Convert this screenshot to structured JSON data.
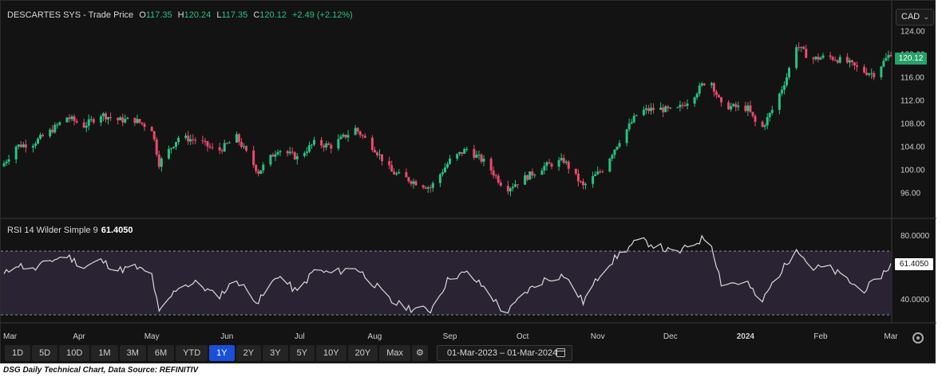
{
  "header": {
    "title": "DESCARTES SYS - Trade Price",
    "o_label": "O",
    "o_value": "117.35",
    "h_label": "H",
    "h_value": "120.24",
    "l_label": "L",
    "l_value": "117.35",
    "c_label": "C",
    "c_value": "120.12",
    "change": "+2.49 (+2.12%)"
  },
  "currency": "CAD",
  "price_badge": "120.12",
  "rsi_badge": "61.4050",
  "rsi_header": {
    "label": "RSI 14 Wilder Simple 9",
    "value": "61.4050"
  },
  "toolbar": {
    "ranges": [
      "1D",
      "5D",
      "10D",
      "1M",
      "3M",
      "6M",
      "YTD",
      "1Y",
      "2Y",
      "3Y",
      "5Y",
      "10Y",
      "20Y",
      "Max"
    ],
    "active": "1Y"
  },
  "date_range": "01-Mar-2023  –  01-Mar-2024",
  "caption": "DSG Daily Technical Chart, Data Source: REFINITIV",
  "colors": {
    "up": "#26c281",
    "down": "#e84a6b",
    "rsi_line": "#d9d9d9",
    "rsi_band": "#2a2333",
    "background": "#131313"
  },
  "icons": {
    "calendar": "calendar-icon",
    "settings": "settings-icon",
    "chevron": "chevron-down-icon"
  },
  "chart_data": [
    {
      "type": "candlestick",
      "title": "DESCARTES SYS - Trade Price",
      "y_ticks": [
        "124.00",
        "120.00",
        "116.00",
        "112.00",
        "108.00",
        "104.00",
        "100.00",
        "96.00"
      ],
      "ylim": [
        93,
        125
      ],
      "x_labels": [
        "Mar",
        "Apr",
        "May",
        "Jun",
        "Jul",
        "Aug",
        "Sep",
        "Oct",
        "Nov",
        "Dec",
        "2024",
        "Feb",
        "Mar"
      ],
      "x_range": [
        "2023-03-01",
        "2024-03-01"
      ],
      "anchors": [
        [
          "2023-03-01",
          101
        ],
        [
          "2023-03-06",
          104
        ],
        [
          "2023-03-13",
          104.5
        ],
        [
          "2023-03-20",
          106.5
        ],
        [
          "2023-03-27",
          109
        ],
        [
          "2023-04-03",
          107.5
        ],
        [
          "2023-04-10",
          109.5
        ],
        [
          "2023-04-17",
          108.5
        ],
        [
          "2023-04-24",
          108.5
        ],
        [
          "2023-05-01",
          107
        ],
        [
          "2023-05-04",
          101
        ],
        [
          "2023-05-12",
          105.5
        ],
        [
          "2023-05-20",
          105
        ],
        [
          "2023-05-28",
          103
        ],
        [
          "2023-06-05",
          105.5
        ],
        [
          "2023-06-14",
          99.5
        ],
        [
          "2023-06-22",
          103.5
        ],
        [
          "2023-06-30",
          102
        ],
        [
          "2023-07-07",
          104.5
        ],
        [
          "2023-07-14",
          104
        ],
        [
          "2023-07-24",
          107
        ],
        [
          "2023-08-01",
          103.5
        ],
        [
          "2023-08-08",
          99.5
        ],
        [
          "2023-08-16",
          98
        ],
        [
          "2023-08-24",
          96.8
        ],
        [
          "2023-09-01",
          101.5
        ],
        [
          "2023-09-08",
          103.5
        ],
        [
          "2023-09-16",
          101
        ],
        [
          "2023-09-24",
          96.5
        ],
        [
          "2023-10-02",
          98.5
        ],
        [
          "2023-10-10",
          100.5
        ],
        [
          "2023-10-18",
          101.5
        ],
        [
          "2023-10-26",
          97
        ],
        [
          "2023-11-03",
          100
        ],
        [
          "2023-11-10",
          105
        ],
        [
          "2023-11-18",
          110
        ],
        [
          "2023-11-26",
          110.5
        ],
        [
          "2023-12-03",
          110
        ],
        [
          "2023-12-10",
          112.5
        ],
        [
          "2023-12-17",
          116
        ],
        [
          "2023-12-22",
          111
        ],
        [
          "2024-01-02",
          110.5
        ],
        [
          "2024-01-07",
          106.5
        ],
        [
          "2024-01-13",
          111
        ],
        [
          "2024-01-18",
          116
        ],
        [
          "2024-01-22",
          121.5
        ],
        [
          "2024-01-28",
          119
        ],
        [
          "2024-02-04",
          119.5
        ],
        [
          "2024-02-12",
          118.5
        ],
        [
          "2024-02-18",
          117
        ],
        [
          "2024-02-23",
          116.5
        ],
        [
          "2024-03-01",
          120.12
        ]
      ]
    },
    {
      "type": "line",
      "title": "RSI 14 Wilder Simple 9",
      "y_ticks": [
        "80.0000",
        "40.0000"
      ],
      "ylim": [
        27,
        83
      ],
      "overbought": 70,
      "oversold": 30,
      "anchors": [
        [
          "2023-03-01",
          55
        ],
        [
          "2023-03-06",
          62
        ],
        [
          "2023-03-13",
          58
        ],
        [
          "2023-03-20",
          64
        ],
        [
          "2023-03-27",
          67
        ],
        [
          "2023-04-03",
          60
        ],
        [
          "2023-04-10",
          64
        ],
        [
          "2023-04-17",
          58
        ],
        [
          "2023-04-24",
          60
        ],
        [
          "2023-05-01",
          55
        ],
        [
          "2023-05-04",
          31
        ],
        [
          "2023-05-12",
          48
        ],
        [
          "2023-05-20",
          50
        ],
        [
          "2023-05-28",
          41
        ],
        [
          "2023-06-05",
          52
        ],
        [
          "2023-06-14",
          38
        ],
        [
          "2023-06-22",
          55
        ],
        [
          "2023-06-30",
          44
        ],
        [
          "2023-07-07",
          58
        ],
        [
          "2023-07-14",
          56
        ],
        [
          "2023-07-24",
          60
        ],
        [
          "2023-08-01",
          49
        ],
        [
          "2023-08-08",
          38
        ],
        [
          "2023-08-16",
          34
        ],
        [
          "2023-08-24",
          33
        ],
        [
          "2023-09-01",
          54
        ],
        [
          "2023-09-08",
          56
        ],
        [
          "2023-09-16",
          46
        ],
        [
          "2023-09-24",
          30
        ],
        [
          "2023-10-02",
          44
        ],
        [
          "2023-10-10",
          52
        ],
        [
          "2023-10-18",
          55
        ],
        [
          "2023-10-26",
          38
        ],
        [
          "2023-11-03",
          58
        ],
        [
          "2023-11-10",
          68
        ],
        [
          "2023-11-18",
          77
        ],
        [
          "2023-11-26",
          73
        ],
        [
          "2023-12-03",
          68
        ],
        [
          "2023-12-10",
          74
        ],
        [
          "2023-12-17",
          80
        ],
        [
          "2023-12-22",
          50
        ],
        [
          "2024-01-02",
          50
        ],
        [
          "2024-01-07",
          36
        ],
        [
          "2024-01-13",
          52
        ],
        [
          "2024-01-18",
          62
        ],
        [
          "2024-01-22",
          73
        ],
        [
          "2024-01-28",
          59
        ],
        [
          "2024-02-04",
          60
        ],
        [
          "2024-02-12",
          52
        ],
        [
          "2024-02-18",
          45
        ],
        [
          "2024-02-23",
          50
        ],
        [
          "2024-03-01",
          61.405
        ]
      ]
    }
  ]
}
